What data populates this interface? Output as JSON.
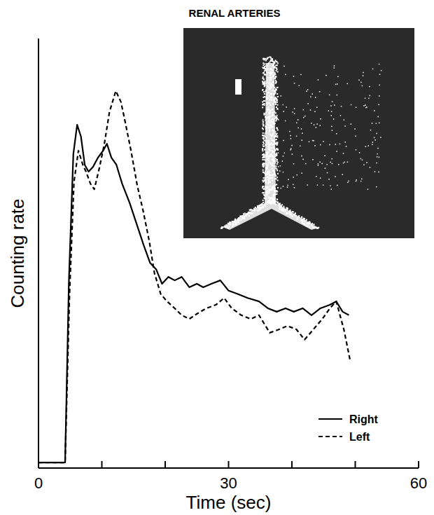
{
  "chart_data": {
    "type": "line",
    "title": "RENAL ARTERIES",
    "x_label": "Time (sec)",
    "y_label": "Counting rate",
    "xlim": [
      0,
      60
    ],
    "xticks": [
      0,
      30,
      60
    ],
    "x_minor_ticks": [
      10,
      20,
      40,
      50
    ],
    "ylim": [
      0,
      100
    ],
    "yticks": [],
    "tick_labels": "x",
    "grid": false,
    "legend": "lower right",
    "series": [
      {
        "name": "Right",
        "color": "#000000",
        "line_style": "solid",
        "x": [
          0,
          4.2,
          4.8,
          5.5,
          6.1,
          6.7,
          7.3,
          7.9,
          8.6,
          9.4,
          10.2,
          10.8,
          11.5,
          12.3,
          13.2,
          14.4,
          15.5,
          16.6,
          17.6,
          18.6,
          19.5,
          20.5,
          21.5,
          22.6,
          23.8,
          25.0,
          26.0,
          27.3,
          28.7,
          30.0,
          31.5,
          33.0,
          34.8,
          36.2,
          37.6,
          39.0,
          40.3,
          41.7,
          43.1,
          44.5,
          46.0,
          47.0,
          48.0,
          49.0
        ],
        "values": [
          1.3,
          1.3,
          43.7,
          73.1,
          79.9,
          77.2,
          70.6,
          69.0,
          70.1,
          72.3,
          73.9,
          75.5,
          72.3,
          70.6,
          66.2,
          61.7,
          56.8,
          51.9,
          47.8,
          46.2,
          42.9,
          44.5,
          43.7,
          44.5,
          42.1,
          42.9,
          42.1,
          42.9,
          43.7,
          41.3,
          40.5,
          39.6,
          38.8,
          37.2,
          36.4,
          37.2,
          36.4,
          37.2,
          35.6,
          37.2,
          38.0,
          38.8,
          36.4,
          35.6
        ]
      },
      {
        "name": "Left",
        "color": "#000000",
        "line_style": "dashed",
        "x": [
          0,
          4.2,
          4.9,
          5.6,
          6.3,
          7.0,
          7.5,
          8.2,
          8.8,
          9.6,
          10.4,
          11.2,
          12.2,
          13.0,
          13.6,
          14.6,
          15.6,
          16.5,
          17.5,
          18.3,
          19.3,
          20.3,
          21.5,
          22.6,
          23.8,
          25.0,
          26.5,
          28.0,
          29.3,
          30.5,
          32.0,
          33.5,
          34.8,
          36.5,
          38.0,
          39.3,
          40.7,
          42.0,
          43.4,
          44.8,
          46.0,
          47.0,
          48.2,
          49.2
        ],
        "values": [
          1.3,
          1.3,
          40.5,
          66.6,
          73.9,
          70.6,
          69.0,
          66.2,
          64.9,
          69.8,
          75.5,
          82.9,
          87.8,
          85.3,
          81.2,
          73.9,
          65.7,
          60.0,
          52.7,
          45.4,
          40.5,
          38.8,
          37.2,
          35.6,
          34.7,
          35.9,
          37.2,
          38.0,
          39.6,
          37.2,
          35.6,
          34.7,
          35.6,
          31.5,
          32.3,
          33.1,
          32.3,
          29.9,
          32.3,
          34.7,
          37.2,
          38.8,
          32.3,
          25.0
        ]
      }
    ]
  }
}
